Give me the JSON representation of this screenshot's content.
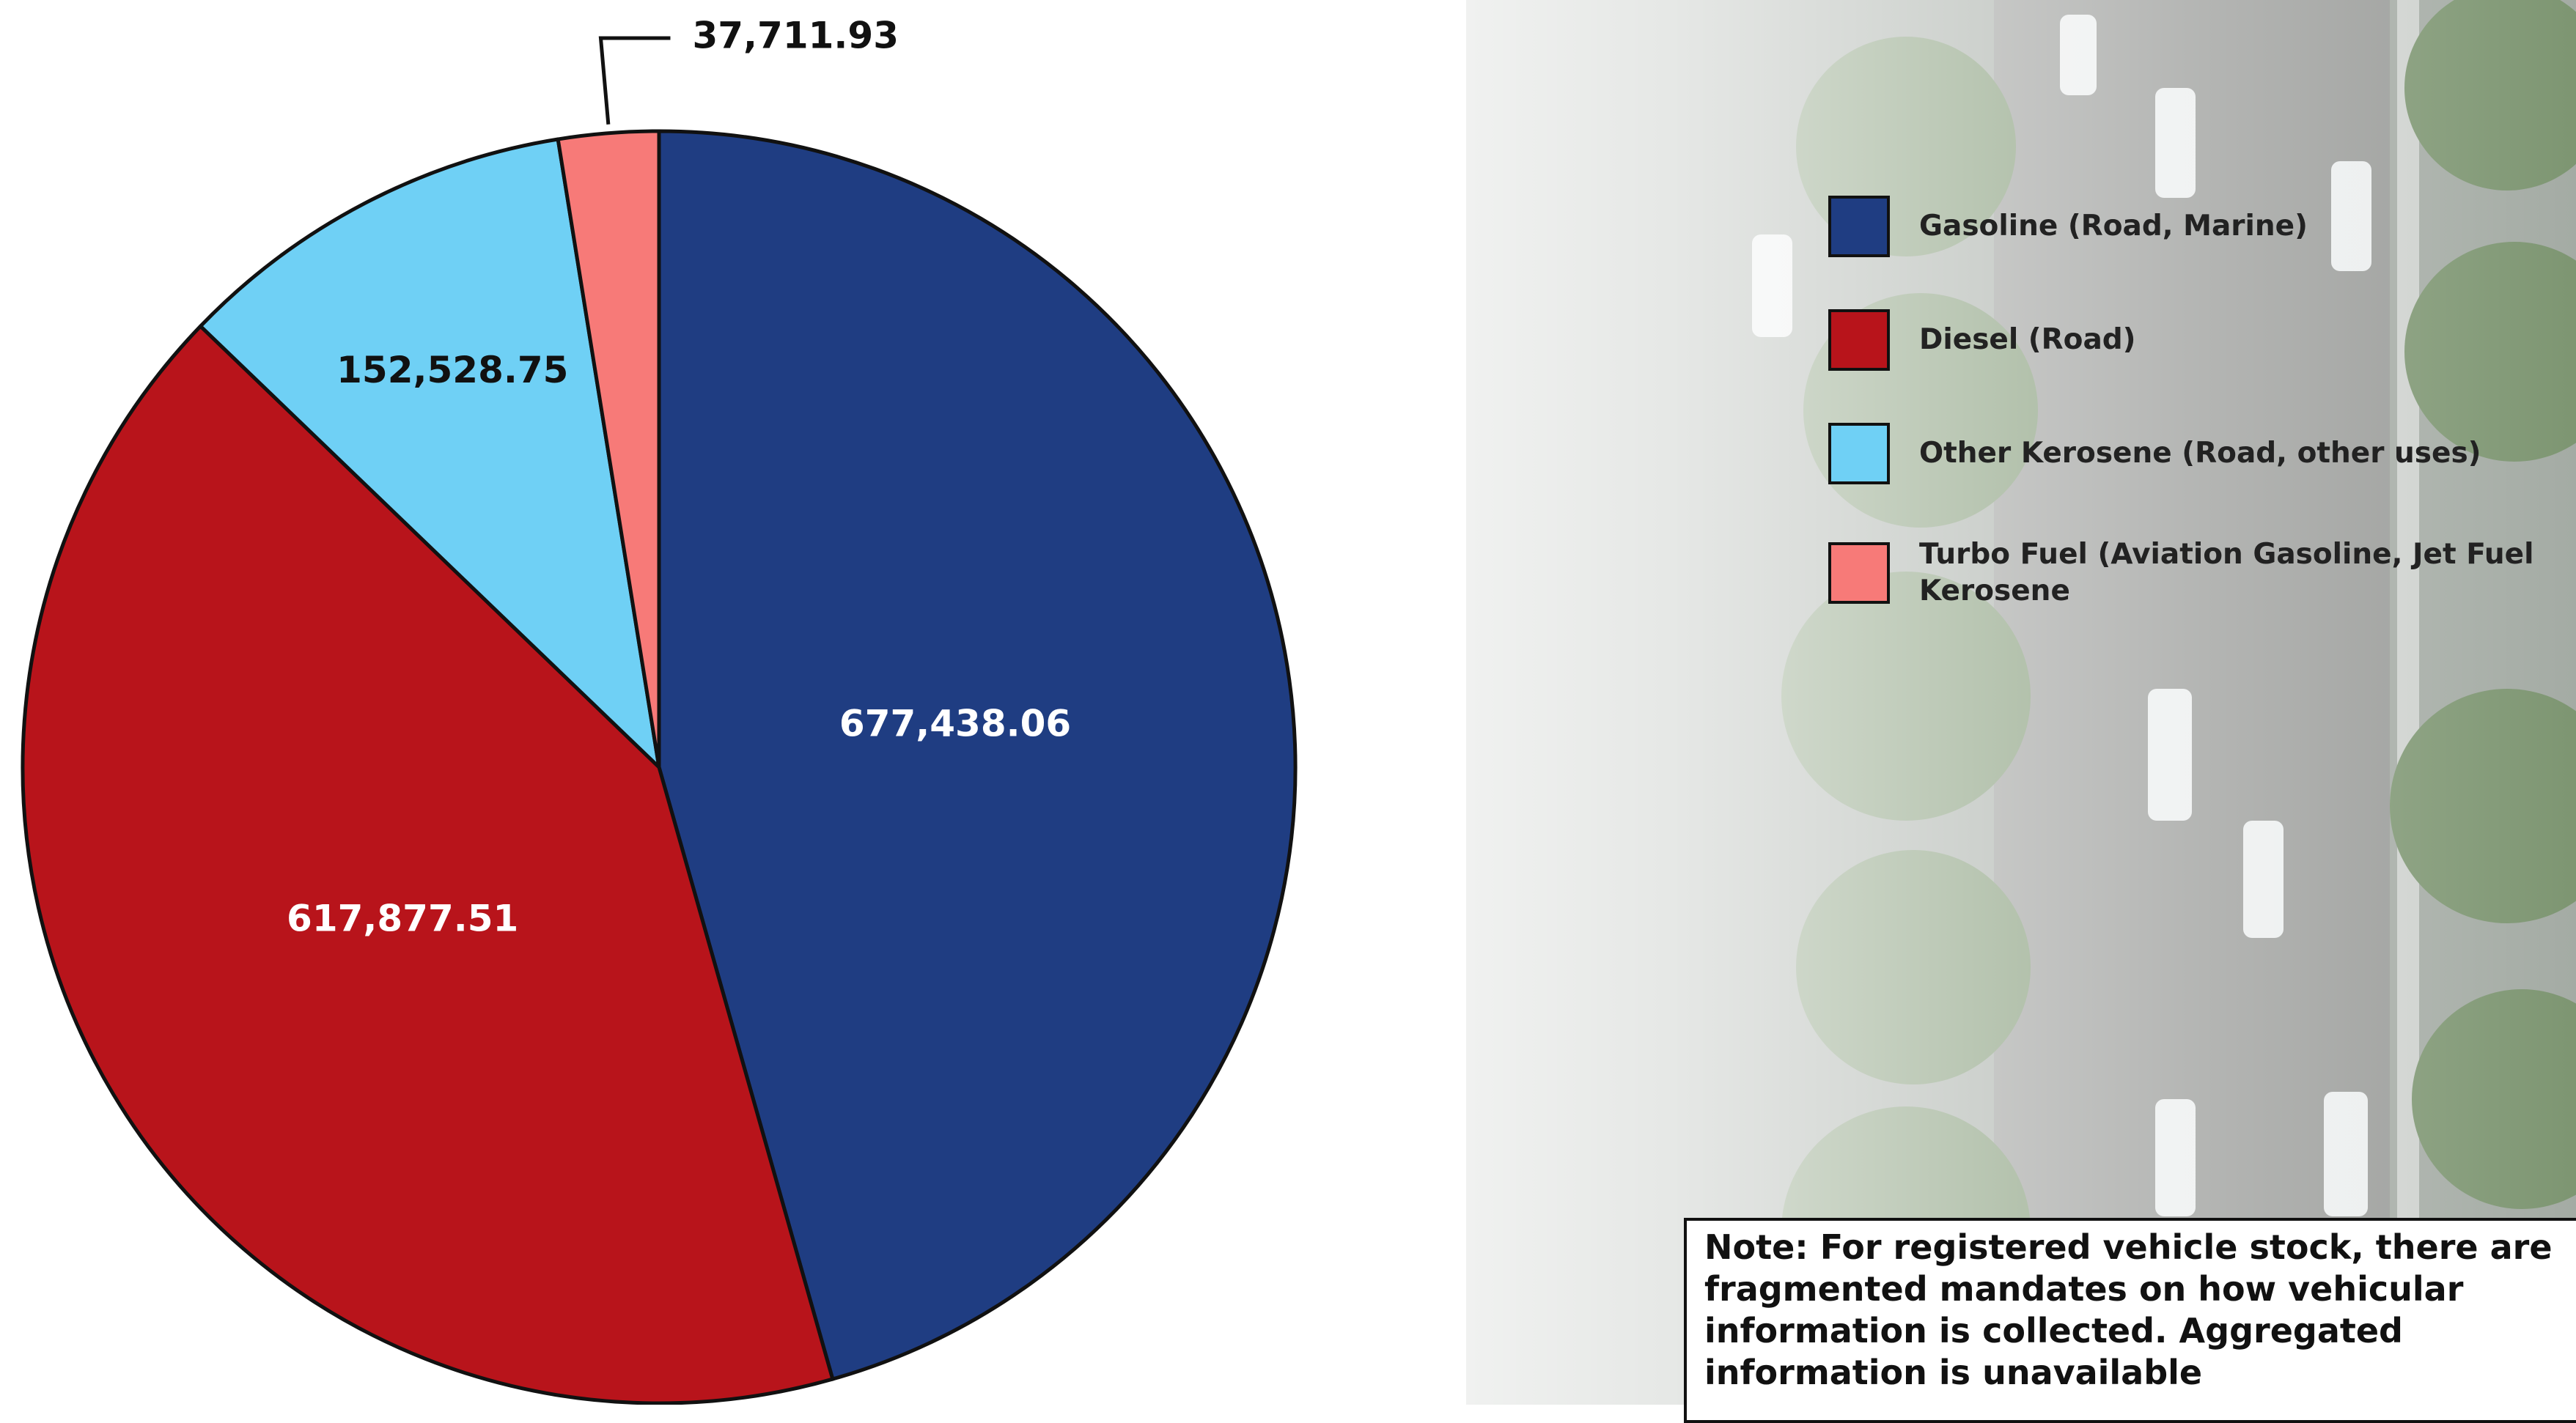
{
  "chart_data": {
    "type": "pie",
    "categories": [
      "Gasoline (Road, Marine)",
      "Diesel (Road)",
      "Other Kerosene (Road, other uses)",
      "Turbo Fuel (Aviation Gasoline, Jet Fuel Kerosene"
    ],
    "values": [
      677438.06,
      617877.51,
      152528.75,
      37711.93
    ],
    "value_labels": [
      "677,438.06",
      "617,877.51",
      "152,528.75",
      "37,711.93"
    ],
    "colors": [
      "#1f3d82",
      "#b8141b",
      "#6fd0f5",
      "#f77a78"
    ],
    "legend": "right"
  },
  "note": "Note: For registered vehicle stock, there are fragmented mandates on how vehicular information is collected. Aggregated information is unavailable"
}
